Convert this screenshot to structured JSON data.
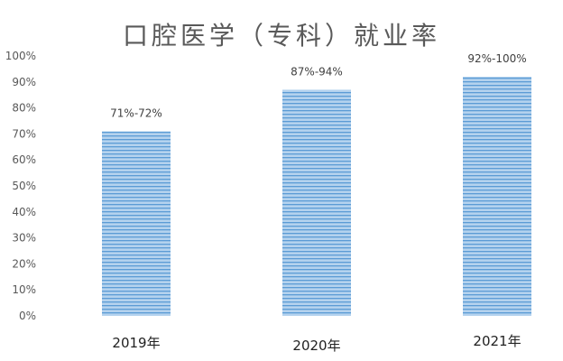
{
  "chart_data": {
    "type": "bar",
    "title": "口腔医学（专科）就业率",
    "categories": [
      "2019年",
      "2020年",
      "2021年"
    ],
    "values": [
      71,
      87,
      92
    ],
    "data_labels": [
      "71%-72%",
      "87%-94%",
      "92%-100%"
    ],
    "ylim": [
      0,
      100
    ],
    "yticks": [
      "0%",
      "10%",
      "20%",
      "30%",
      "40%",
      "50%",
      "60%",
      "70%",
      "80%",
      "90%",
      "100%"
    ],
    "grid": false,
    "legend": "none",
    "bar_color": "#9dc3e6",
    "stripe_color": "#5b9bd5"
  }
}
